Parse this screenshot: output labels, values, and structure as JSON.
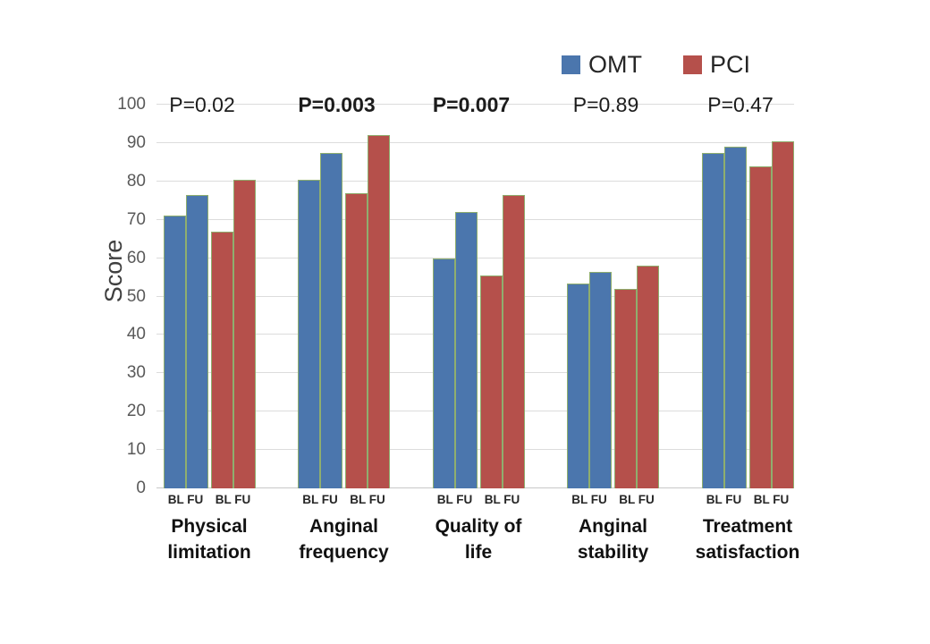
{
  "chart_data": {
    "type": "bar",
    "title": "",
    "ylabel": "Score",
    "ylim": [
      0,
      100
    ],
    "yticks": [
      0,
      10,
      20,
      30,
      40,
      50,
      60,
      70,
      80,
      90,
      100
    ],
    "grid": true,
    "legend_position": "top-right",
    "legend": [
      {
        "name": "OMT",
        "color": "#4b76ad"
      },
      {
        "name": "PCI",
        "color": "#b5504b"
      }
    ],
    "bar_edge_color": "#8fae6e",
    "series_keys": [
      "OMT-BL",
      "OMT-FU",
      "PCI-BL",
      "PCI-FU"
    ],
    "sub_labels": [
      "BL",
      "FU"
    ],
    "groups": [
      {
        "category": "Physical limitation",
        "category_lines": [
          "Physical",
          "limitation"
        ],
        "p_label": "P=0.02",
        "p_bold": false,
        "values": [
          71,
          76.5,
          67,
          80.5
        ]
      },
      {
        "category": "Anginal frequency",
        "category_lines": [
          "Anginal",
          "frequency"
        ],
        "p_label": "P=0.003",
        "p_bold": true,
        "values": [
          80.5,
          87.5,
          77,
          92
        ]
      },
      {
        "category": "Quality of life",
        "category_lines": [
          "Quality of",
          "life"
        ],
        "p_label": "P=0.007",
        "p_bold": true,
        "values": [
          60,
          72,
          55.5,
          76.5
        ]
      },
      {
        "category": "Anginal stability",
        "category_lines": [
          "Anginal",
          "stability"
        ],
        "p_label": "P=0.89",
        "p_bold": false,
        "values": [
          53.5,
          56.5,
          52,
          58
        ]
      },
      {
        "category": "Treatment satisfaction",
        "category_lines": [
          "Treatment",
          "satisfaction"
        ],
        "p_label": "P=0.47",
        "p_bold": false,
        "values": [
          87.5,
          89,
          84,
          90.5
        ]
      }
    ]
  }
}
